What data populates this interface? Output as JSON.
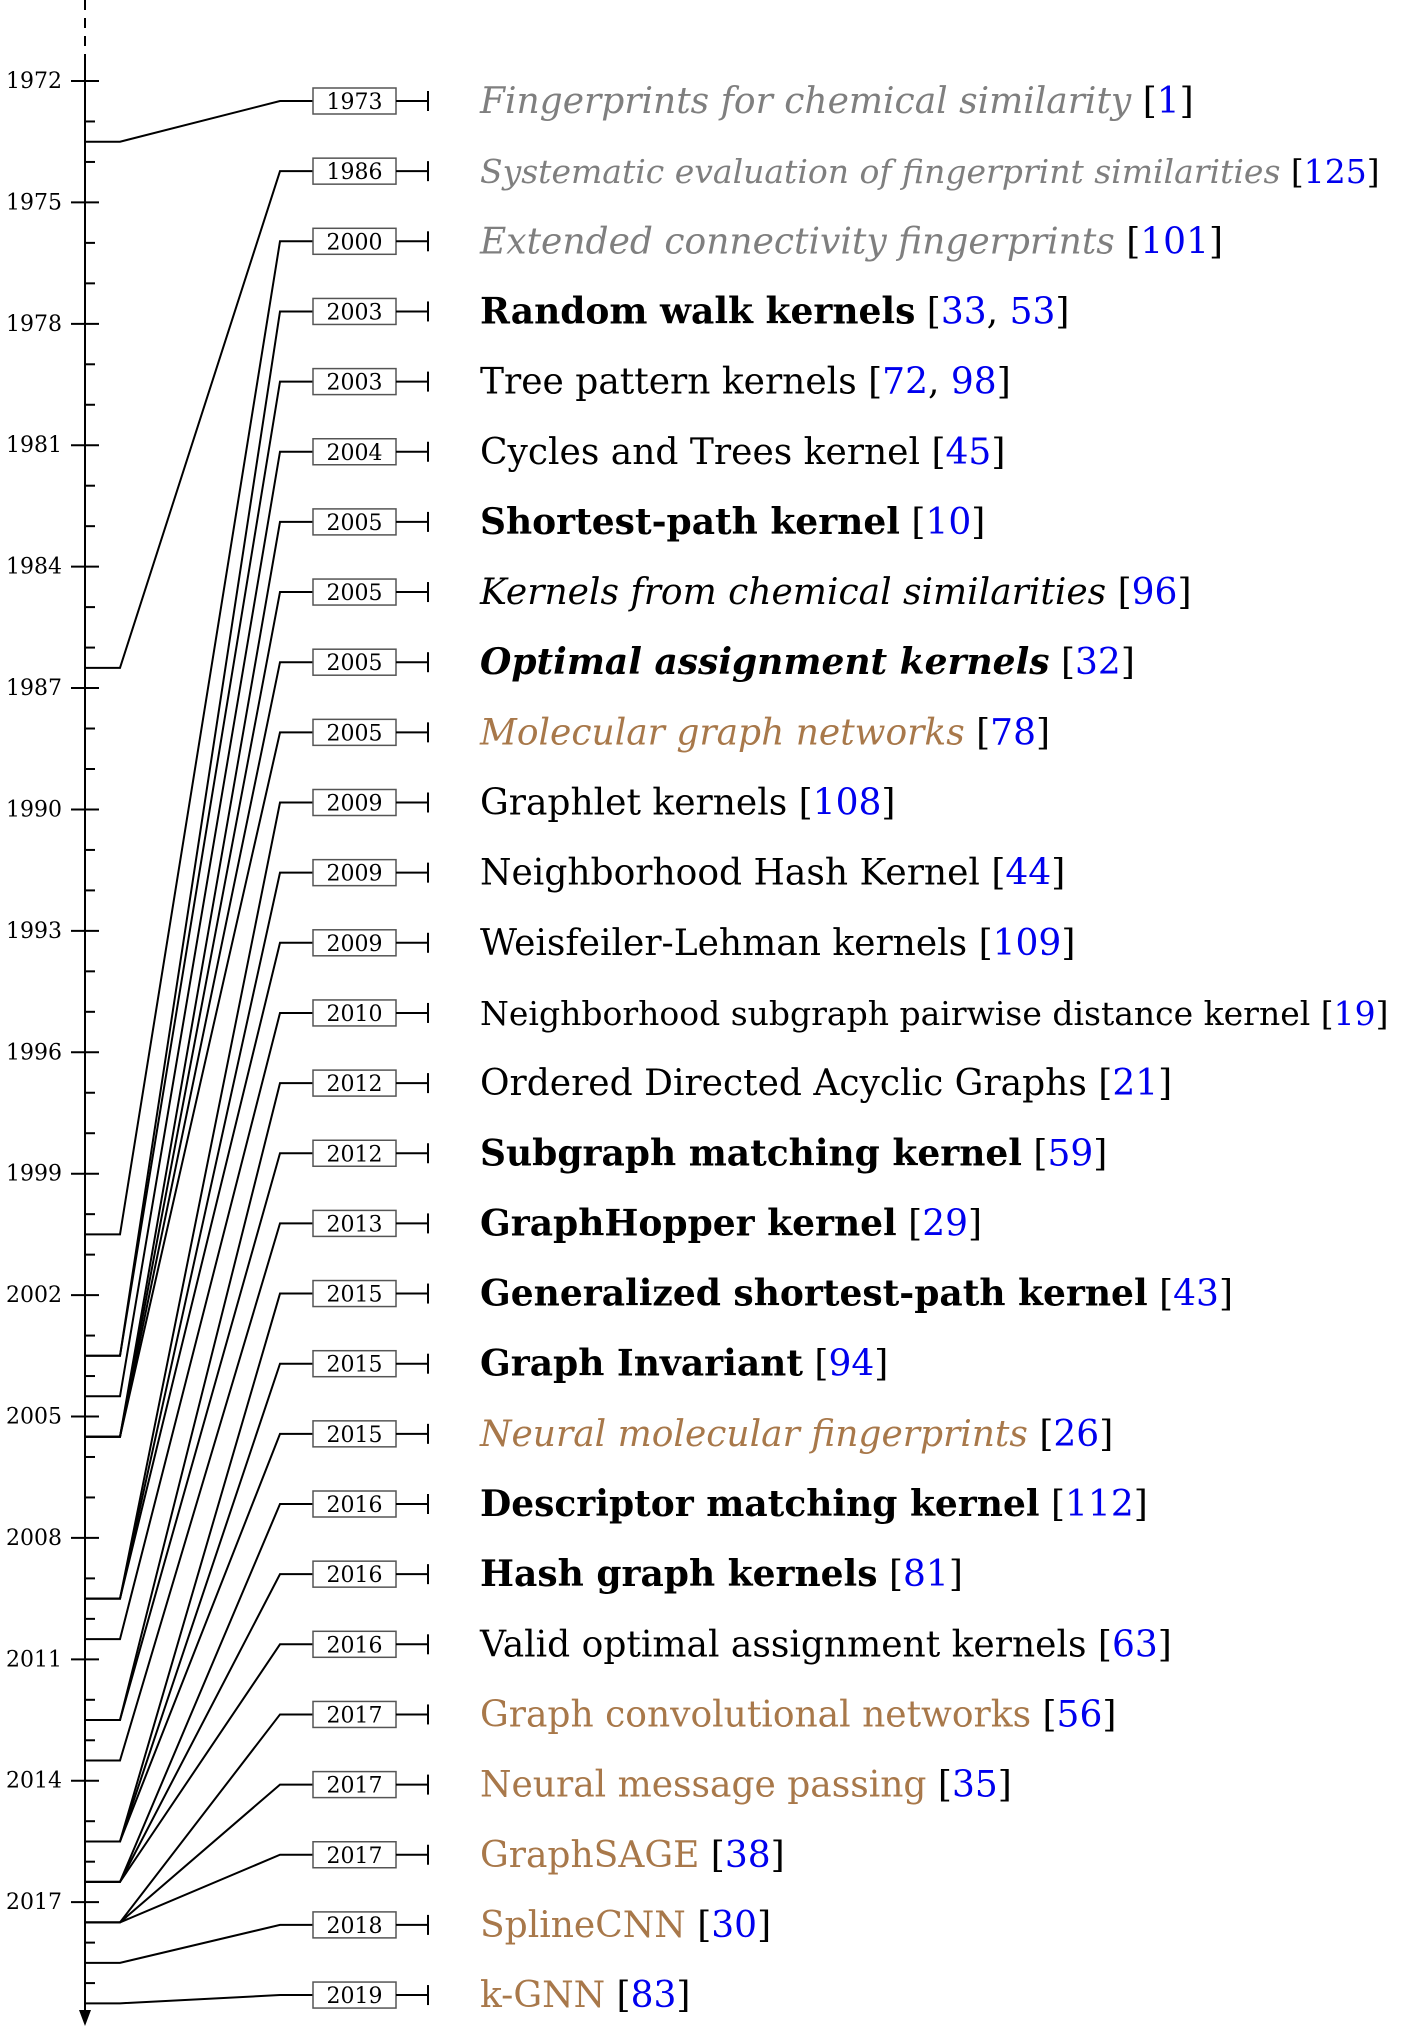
{
  "colors": {
    "plain": "#000000",
    "gray": "#7f7f7f",
    "neural": "#a8784a",
    "citation": "#0000ee"
  },
  "axis": {
    "years": [
      "1972",
      "1975",
      "1978",
      "1981",
      "1984",
      "1987",
      "1990",
      "1993",
      "1996",
      "1999",
      "2002",
      "2005",
      "2008",
      "2011",
      "2014",
      "2017"
    ]
  },
  "entries": [
    {
      "year": "1973",
      "title": "Fingerprints for chemical similarity",
      "refs": [
        "1"
      ],
      "style": "italic",
      "color": "gray"
    },
    {
      "year": "1986",
      "title": "Systematic evaluation of fingerprint similarities",
      "refs": [
        "125"
      ],
      "style": "italic",
      "color": "gray"
    },
    {
      "year": "2000",
      "title": "Extended connectivity fingerprints",
      "refs": [
        "101"
      ],
      "style": "italic",
      "color": "gray"
    },
    {
      "year": "2003",
      "title": "Random walk kernels",
      "refs": [
        "33",
        "53"
      ],
      "style": "bold",
      "color": "plain"
    },
    {
      "year": "2003",
      "title": "Tree pattern kernels",
      "refs": [
        "72",
        "98"
      ],
      "style": "normal",
      "color": "plain"
    },
    {
      "year": "2004",
      "title": "Cycles and Trees kernel",
      "refs": [
        "45"
      ],
      "style": "normal",
      "color": "plain"
    },
    {
      "year": "2005",
      "title": "Shortest-path kernel",
      "refs": [
        "10"
      ],
      "style": "bold",
      "color": "plain"
    },
    {
      "year": "2005",
      "title": "Kernels from chemical similarities",
      "refs": [
        "96"
      ],
      "style": "italic",
      "color": "plain"
    },
    {
      "year": "2005",
      "title": "Optimal assignment kernels",
      "refs": [
        "32"
      ],
      "style": "bolditalic",
      "color": "plain"
    },
    {
      "year": "2005",
      "title": "Molecular graph networks",
      "refs": [
        "78"
      ],
      "style": "italic",
      "color": "neural"
    },
    {
      "year": "2009",
      "title": "Graphlet kernels",
      "refs": [
        "108"
      ],
      "style": "normal",
      "color": "plain"
    },
    {
      "year": "2009",
      "title": "Neighborhood Hash Kernel",
      "refs": [
        "44"
      ],
      "style": "normal",
      "color": "plain"
    },
    {
      "year": "2009",
      "title": "Weisfeiler-Lehman kernels",
      "refs": [
        "109"
      ],
      "style": "normal",
      "color": "plain"
    },
    {
      "year": "2010",
      "title": "Neighborhood subgraph pairwise distance kernel",
      "refs": [
        "19"
      ],
      "style": "normal",
      "color": "plain"
    },
    {
      "year": "2012",
      "title": "Ordered Directed Acyclic Graphs",
      "refs": [
        "21"
      ],
      "style": "normal",
      "color": "plain"
    },
    {
      "year": "2012",
      "title": "Subgraph matching kernel",
      "refs": [
        "59"
      ],
      "style": "bold",
      "color": "plain"
    },
    {
      "year": "2013",
      "title": "GraphHopper kernel",
      "refs": [
        "29"
      ],
      "style": "bold",
      "color": "plain"
    },
    {
      "year": "2015",
      "title": "Generalized shortest-path kernel",
      "refs": [
        "43"
      ],
      "style": "bold",
      "color": "plain"
    },
    {
      "year": "2015",
      "title": "Graph Invariant",
      "refs": [
        "94"
      ],
      "style": "bold",
      "color": "plain"
    },
    {
      "year": "2015",
      "title": "Neural molecular fingerprints",
      "refs": [
        "26"
      ],
      "style": "italic",
      "color": "neural"
    },
    {
      "year": "2016",
      "title": "Descriptor matching kernel",
      "refs": [
        "112"
      ],
      "style": "bold",
      "color": "plain"
    },
    {
      "year": "2016",
      "title": "Hash graph kernels",
      "refs": [
        "81"
      ],
      "style": "bold",
      "color": "plain"
    },
    {
      "year": "2016",
      "title": "Valid optimal assignment kernels",
      "refs": [
        "63"
      ],
      "style": "normal",
      "color": "plain"
    },
    {
      "year": "2017",
      "title": "Graph convolutional networks",
      "refs": [
        "56"
      ],
      "style": "normal",
      "color": "neural"
    },
    {
      "year": "2017",
      "title": "Neural message passing",
      "refs": [
        "35"
      ],
      "style": "normal",
      "color": "neural"
    },
    {
      "year": "2017",
      "title": "GraphSAGE",
      "refs": [
        "38"
      ],
      "style": "normal",
      "color": "neural"
    },
    {
      "year": "2018",
      "title": "SplineCNN",
      "refs": [
        "30"
      ],
      "style": "normal",
      "color": "neural"
    },
    {
      "year": "2019",
      "title": "k-GNN",
      "refs": [
        "83"
      ],
      "style": "normal",
      "color": "neural"
    }
  ]
}
